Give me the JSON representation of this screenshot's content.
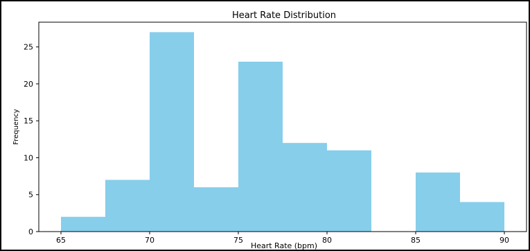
{
  "chart_data": {
    "type": "bar",
    "title": "Heart Rate Distribution",
    "xlabel": "Heart Rate (bpm)",
    "ylabel": "Frequency",
    "bins": [
      {
        "start": 65.0,
        "end": 67.5,
        "value": 2
      },
      {
        "start": 67.5,
        "end": 70.0,
        "value": 7
      },
      {
        "start": 70.0,
        "end": 72.5,
        "value": 27
      },
      {
        "start": 72.5,
        "end": 75.0,
        "value": 6
      },
      {
        "start": 75.0,
        "end": 77.5,
        "value": 23
      },
      {
        "start": 77.5,
        "end": 80.0,
        "value": 12
      },
      {
        "start": 80.0,
        "end": 82.5,
        "value": 11
      },
      {
        "start": 82.5,
        "end": 85.0,
        "value": 0
      },
      {
        "start": 85.0,
        "end": 87.5,
        "value": 8
      },
      {
        "start": 87.5,
        "end": 90.0,
        "value": 4
      }
    ],
    "xlim": [
      63.75,
      91.25
    ],
    "ylim": [
      0,
      28.35
    ],
    "xticks": [
      65,
      70,
      75,
      80,
      85,
      90
    ],
    "xtick_labels": [
      "65",
      "70",
      "75",
      "80",
      "85",
      "90"
    ],
    "yticks": [
      0,
      5,
      10,
      15,
      20,
      25
    ],
    "ytick_labels": [
      "0",
      "5",
      "10",
      "15",
      "20",
      "25"
    ],
    "bar_color": "#87ceeb",
    "grid": false,
    "legend": "none"
  }
}
